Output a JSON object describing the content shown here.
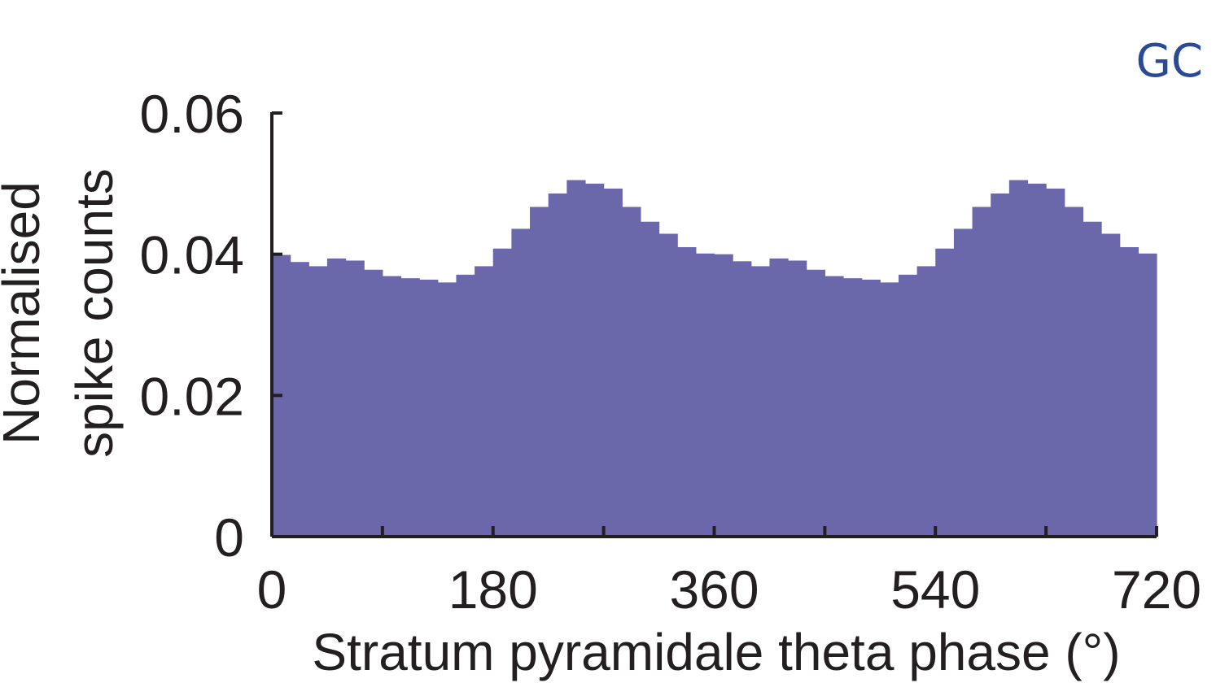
{
  "panel_label": "GC",
  "colors": {
    "bars": "#6a68ab",
    "axis": "#231f20",
    "panel_label": "#2b4a95"
  },
  "chart_data": {
    "type": "bar",
    "title": "",
    "xlabel": "Stratum pyramidale theta phase (°)",
    "ylabel_lines": [
      "Normalised",
      "spike counts"
    ],
    "xlim": [
      0,
      720
    ],
    "ylim": [
      0,
      0.06
    ],
    "bin_width": 15,
    "x_ticks": [
      0,
      180,
      360,
      540,
      720
    ],
    "x_tick_labels": [
      "0",
      "180",
      "360",
      "540",
      "720"
    ],
    "x_minor_ticks": [
      90,
      270,
      450,
      630
    ],
    "y_ticks": [
      0,
      0.02,
      0.04,
      0.06
    ],
    "y_tick_labels": [
      "0",
      "0.02",
      "0.04",
      "0.06"
    ],
    "bin_starts": [
      0,
      15,
      30,
      45,
      60,
      75,
      90,
      105,
      120,
      135,
      150,
      165,
      180,
      195,
      210,
      225,
      240,
      255,
      270,
      285,
      300,
      315,
      330,
      345,
      360,
      375,
      390,
      405,
      420,
      435,
      450,
      465,
      480,
      495,
      510,
      525,
      540,
      555,
      570,
      585,
      600,
      615,
      630,
      645,
      660,
      675,
      690,
      705
    ],
    "values": [
      0.0399,
      0.0389,
      0.0383,
      0.0394,
      0.0391,
      0.0378,
      0.0369,
      0.0366,
      0.0364,
      0.036,
      0.0371,
      0.0383,
      0.0408,
      0.0436,
      0.0467,
      0.0486,
      0.0505,
      0.05,
      0.0493,
      0.0467,
      0.0446,
      0.0429,
      0.041,
      0.0401,
      0.04,
      0.039,
      0.0383,
      0.0394,
      0.0391,
      0.0378,
      0.0369,
      0.0366,
      0.0364,
      0.036,
      0.0371,
      0.0383,
      0.0408,
      0.0436,
      0.0467,
      0.0486,
      0.0505,
      0.05,
      0.0493,
      0.0467,
      0.0446,
      0.0429,
      0.041,
      0.0401
    ]
  }
}
